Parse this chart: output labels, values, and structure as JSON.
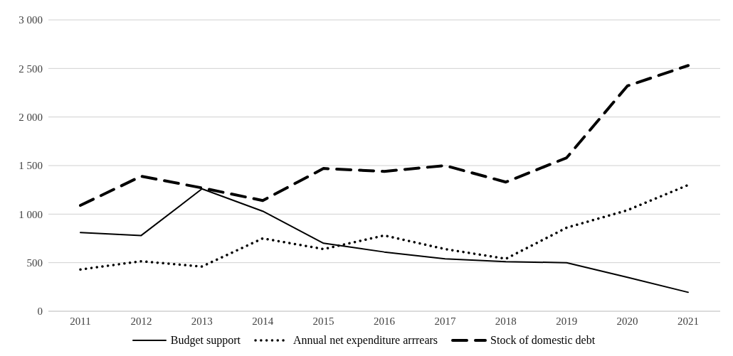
{
  "chart_data": {
    "type": "line",
    "categories": [
      "2011",
      "2012",
      "2013",
      "2014",
      "2015",
      "2016",
      "2017",
      "2018",
      "2019",
      "2020",
      "2021"
    ],
    "series": [
      {
        "name": "Budget support",
        "color": "#000000",
        "line_style": "solid",
        "values": [
          810,
          780,
          1260,
          1030,
          700,
          610,
          540,
          510,
          500,
          350,
          195
        ]
      },
      {
        "name": "Annual net expenditure arrrears",
        "color": "#000000",
        "line_style": "dotted",
        "values": [
          430,
          515,
          460,
          750,
          640,
          780,
          640,
          540,
          860,
          1040,
          1300
        ]
      },
      {
        "name": "Stock of domestic debt",
        "color": "#000000",
        "line_style": "dashed",
        "values": [
          1090,
          1390,
          1270,
          1140,
          1470,
          1440,
          1500,
          1330,
          1580,
          2320,
          2530
        ]
      }
    ],
    "ylim": [
      0,
      3000
    ],
    "yticks": [
      0,
      500,
      {
        "value": 1000,
        "label": "1 000"
      },
      {
        "value": 1500,
        "label": "1 500"
      },
      {
        "value": 2000,
        "label": "2 000"
      },
      {
        "value": 2500,
        "label": "2 500"
      },
      {
        "value": 3000,
        "label": "3 000"
      }
    ],
    "grid": "y",
    "legend": "bottom",
    "marker": "none"
  }
}
